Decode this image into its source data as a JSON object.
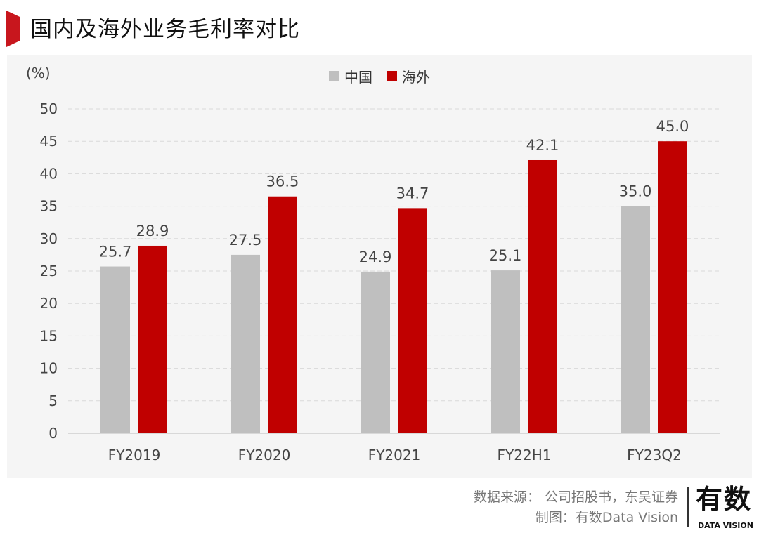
{
  "title": "国内及海外业务毛利率对比",
  "source": {
    "line1": "数据来源：  公司招股书，东吴证券",
    "line2": "制图：有数Data Vision",
    "logo": "有数",
    "logo_sub": "DATA VISION"
  },
  "chart_data": {
    "type": "bar",
    "title": "国内及海外业务毛利率对比",
    "ylabel": "(%)",
    "ylim": [
      0,
      50
    ],
    "yticks": [
      0,
      5,
      10,
      15,
      20,
      25,
      30,
      35,
      40,
      45,
      50
    ],
    "grid": true,
    "legend": "top-center",
    "categories": [
      "FY2019",
      "FY2020",
      "FY2021",
      "FY22H1",
      "FY23Q2"
    ],
    "series": [
      {
        "name": "中国",
        "color": "#bfbfbf",
        "values": [
          25.7,
          27.5,
          24.9,
          25.1,
          35.0
        ],
        "labels": [
          "25.7",
          "27.5",
          "24.9",
          "25.1",
          "35.0"
        ]
      },
      {
        "name": "海外",
        "color": "#c00000",
        "values": [
          28.9,
          36.5,
          34.7,
          42.1,
          45.0
        ],
        "labels": [
          "28.9",
          "36.5",
          "34.7",
          "42.1",
          "45.0"
        ]
      }
    ]
  }
}
